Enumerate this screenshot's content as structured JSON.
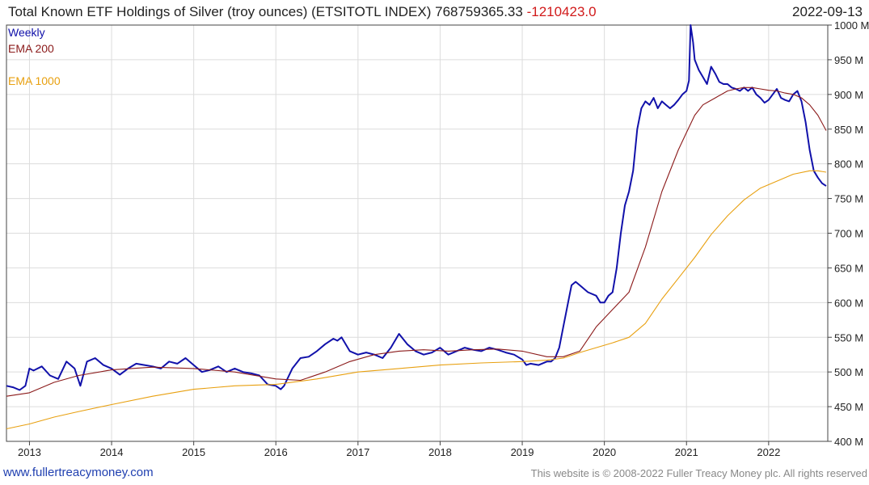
{
  "header": {
    "title": "Total Known ETF Holdings of Silver (troy ounces) (ETSITOTL INDEX) 768759365.33",
    "change": "-1210423.0",
    "date": "2022-09-13"
  },
  "footer": {
    "site": "www.fullertreacymoney.com",
    "copyright": "This website is © 2008-2022 Fuller Treacy Money plc. All rights reserved"
  },
  "colors": {
    "weekly": "#1111aa",
    "ema200": "#8b1a1a",
    "ema1000": "#e8a010",
    "grid": "#dcdcdc",
    "title_change": "#d11a1a"
  },
  "chart_data": {
    "type": "line",
    "title": "Total Known ETF Holdings of Silver (troy ounces) (ETSITOTL INDEX)",
    "xlim": [
      2012.72,
      2022.72
    ],
    "ylim": [
      400,
      1000
    ],
    "x_ticks": [
      "2013",
      "2014",
      "2015",
      "2016",
      "2017",
      "2018",
      "2019",
      "2020",
      "2021",
      "2022"
    ],
    "y_ticks": [
      "400 M",
      "450 M",
      "500 M",
      "550 M",
      "600 M",
      "650 M",
      "700 M",
      "750 M",
      "800 M",
      "850 M",
      "900 M",
      "950 M",
      "1000 M"
    ],
    "grid": true,
    "legend_position": "top-left",
    "series": [
      {
        "name": "Weekly",
        "x": [
          2012.72,
          2012.8,
          2012.88,
          2012.95,
          2013.0,
          2013.05,
          2013.15,
          2013.25,
          2013.35,
          2013.45,
          2013.55,
          2013.62,
          2013.7,
          2013.8,
          2013.9,
          2014.0,
          2014.1,
          2014.2,
          2014.3,
          2014.4,
          2014.5,
          2014.6,
          2014.7,
          2014.8,
          2014.9,
          2015.0,
          2015.1,
          2015.2,
          2015.3,
          2015.4,
          2015.5,
          2015.6,
          2015.7,
          2015.8,
          2015.9,
          2016.0,
          2016.06,
          2016.1,
          2016.2,
          2016.3,
          2016.4,
          2016.5,
          2016.6,
          2016.7,
          2016.75,
          2016.8,
          2016.9,
          2017.0,
          2017.1,
          2017.2,
          2017.3,
          2017.4,
          2017.5,
          2017.6,
          2017.7,
          2017.8,
          2017.9,
          2018.0,
          2018.1,
          2018.2,
          2018.3,
          2018.4,
          2018.5,
          2018.6,
          2018.7,
          2018.8,
          2018.9,
          2019.0,
          2019.05,
          2019.1,
          2019.2,
          2019.3,
          2019.35,
          2019.4,
          2019.45,
          2019.5,
          2019.55,
          2019.6,
          2019.65,
          2019.7,
          2019.8,
          2019.9,
          2019.95,
          2020.0,
          2020.05,
          2020.1,
          2020.15,
          2020.2,
          2020.25,
          2020.3,
          2020.35,
          2020.4,
          2020.45,
          2020.5,
          2020.55,
          2020.6,
          2020.65,
          2020.7,
          2020.75,
          2020.8,
          2020.85,
          2020.9,
          2020.95,
          2021.0,
          2021.03,
          2021.05,
          2021.08,
          2021.1,
          2021.15,
          2021.2,
          2021.25,
          2021.3,
          2021.35,
          2021.4,
          2021.45,
          2021.5,
          2021.55,
          2021.6,
          2021.65,
          2021.7,
          2021.75,
          2021.8,
          2021.85,
          2021.9,
          2021.95,
          2022.0,
          2022.05,
          2022.1,
          2022.15,
          2022.2,
          2022.25,
          2022.3,
          2022.35,
          2022.4,
          2022.45,
          2022.5,
          2022.55,
          2022.6,
          2022.65,
          2022.7
        ],
        "y": [
          480,
          478,
          474,
          480,
          505,
          502,
          508,
          495,
          490,
          515,
          505,
          480,
          515,
          520,
          510,
          505,
          496,
          505,
          512,
          510,
          508,
          505,
          515,
          512,
          520,
          510,
          500,
          503,
          508,
          500,
          505,
          500,
          498,
          495,
          482,
          480,
          475,
          480,
          505,
          520,
          522,
          530,
          540,
          548,
          545,
          550,
          530,
          525,
          528,
          525,
          520,
          535,
          555,
          540,
          530,
          525,
          528,
          535,
          525,
          530,
          535,
          532,
          530,
          535,
          532,
          528,
          525,
          518,
          510,
          512,
          510,
          515,
          515,
          520,
          535,
          565,
          595,
          625,
          630,
          625,
          615,
          610,
          600,
          600,
          610,
          615,
          650,
          700,
          740,
          760,
          790,
          850,
          880,
          890,
          885,
          895,
          880,
          890,
          885,
          880,
          885,
          892,
          900,
          905,
          920,
          1000,
          975,
          950,
          935,
          925,
          915,
          940,
          930,
          918,
          915,
          915,
          910,
          908,
          905,
          910,
          905,
          910,
          900,
          895,
          888,
          892,
          900,
          908,
          895,
          892,
          890,
          900,
          905,
          890,
          860,
          820,
          790,
          780,
          772,
          768
        ]
      },
      {
        "name": "EMA 200",
        "x": [
          2012.72,
          2013.0,
          2013.3,
          2013.6,
          2014.0,
          2014.5,
          2015.0,
          2015.5,
          2016.0,
          2016.3,
          2016.6,
          2016.9,
          2017.2,
          2017.5,
          2017.8,
          2018.1,
          2018.4,
          2018.7,
          2019.0,
          2019.3,
          2019.5,
          2019.7,
          2019.9,
          2020.1,
          2020.3,
          2020.5,
          2020.7,
          2020.9,
          2021.0,
          2021.1,
          2021.2,
          2021.35,
          2021.5,
          2021.6,
          2021.7,
          2021.8,
          2021.9,
          2022.0,
          2022.1,
          2022.2,
          2022.3,
          2022.4,
          2022.5,
          2022.6,
          2022.7
        ],
        "y": [
          465,
          470,
          485,
          495,
          503,
          507,
          505,
          500,
          490,
          488,
          500,
          515,
          525,
          530,
          532,
          530,
          532,
          533,
          530,
          522,
          522,
          530,
          565,
          590,
          615,
          680,
          760,
          820,
          845,
          870,
          885,
          895,
          905,
          908,
          910,
          910,
          908,
          906,
          905,
          902,
          900,
          895,
          885,
          870,
          848
        ]
      },
      {
        "name": "EMA 1000",
        "x": [
          2012.72,
          2013.0,
          2013.3,
          2013.6,
          2014.0,
          2014.5,
          2015.0,
          2015.5,
          2016.0,
          2016.5,
          2017.0,
          2017.5,
          2018.0,
          2018.5,
          2019.0,
          2019.3,
          2019.5,
          2019.7,
          2019.9,
          2020.1,
          2020.3,
          2020.5,
          2020.7,
          2020.9,
          2021.1,
          2021.3,
          2021.5,
          2021.7,
          2021.9,
          2022.1,
          2022.3,
          2022.5,
          2022.6,
          2022.7
        ],
        "y": [
          418,
          425,
          435,
          443,
          453,
          465,
          475,
          480,
          482,
          490,
          500,
          505,
          510,
          513,
          515,
          517,
          520,
          528,
          535,
          542,
          550,
          570,
          605,
          635,
          665,
          698,
          725,
          748,
          765,
          775,
          785,
          790,
          790,
          788
        ]
      }
    ]
  }
}
